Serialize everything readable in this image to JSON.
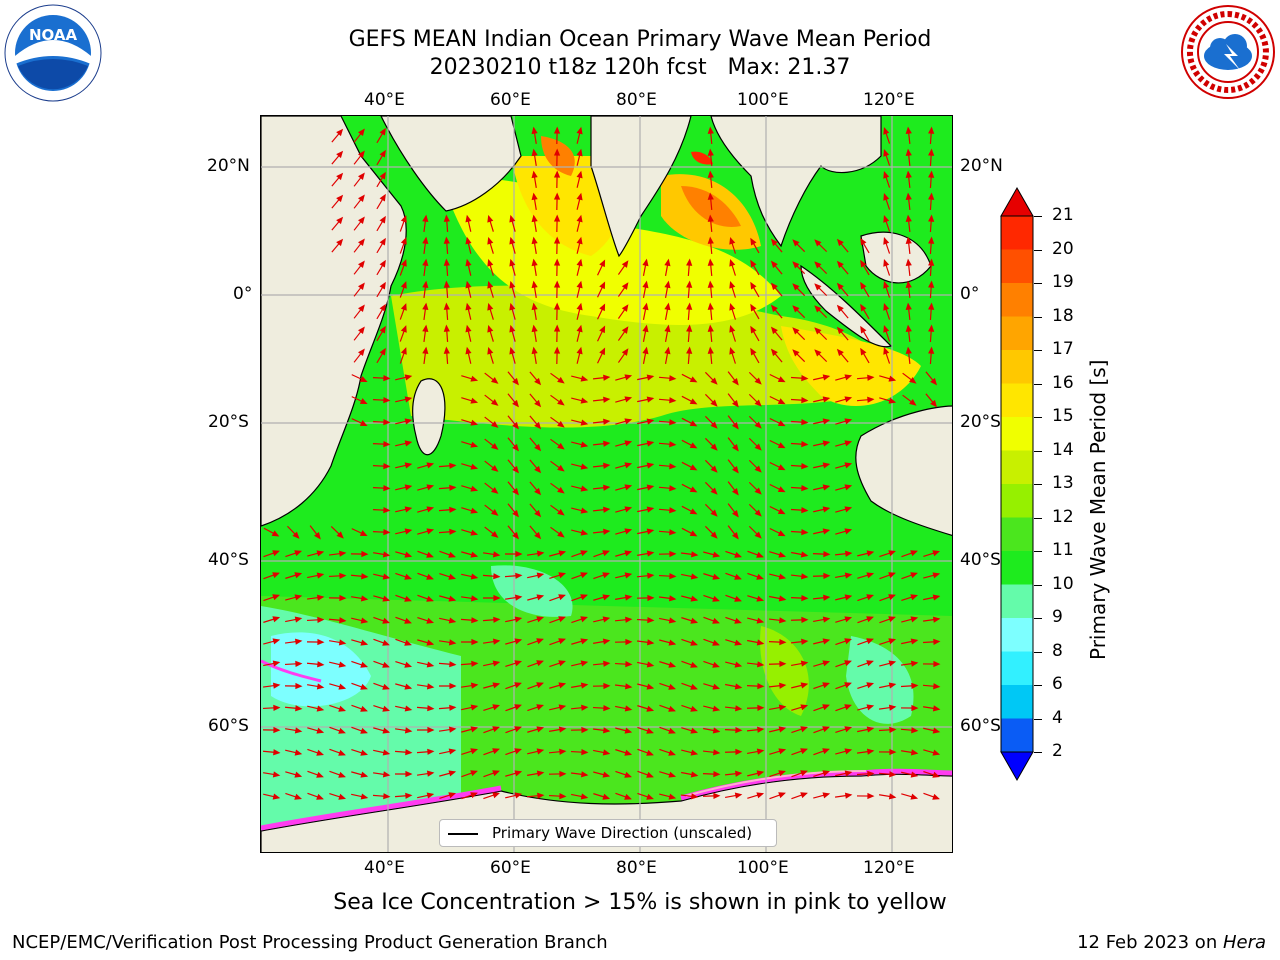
{
  "title": {
    "line1": "GEFS MEAN Indian Ocean Primary Wave Mean Period",
    "line2": "20230210 t18z 120h fcst   Max: 21.37"
  },
  "axes": {
    "lon_labels": [
      "40°E",
      "60°E",
      "80°E",
      "100°E",
      "120°E"
    ],
    "lat_labels": [
      "20°N",
      "0°",
      "20°S",
      "40°S",
      "60°S"
    ]
  },
  "legend": {
    "label": "Primary Wave Direction (unscaled)"
  },
  "colorbar": {
    "label": "Primary Wave Mean Period [s]",
    "ticks": [
      "2",
      "4",
      "6",
      "8",
      "9",
      "10",
      "11",
      "12",
      "13",
      "14",
      "15",
      "16",
      "17",
      "18",
      "19",
      "20",
      "21"
    ],
    "colors": [
      "#0000ff",
      "#0a5cf5",
      "#00c8f5",
      "#32f0ff",
      "#7dffff",
      "#64fbaa",
      "#1eeb1e",
      "#4be61e",
      "#96f000",
      "#c8f000",
      "#f0ff00",
      "#ffe600",
      "#ffc800",
      "#ffa500",
      "#ff8000",
      "#ff5000",
      "#ff2800",
      "#e60000"
    ]
  },
  "caption": "Sea Ice Concentration > 15% is shown in pink to yellow",
  "footer": {
    "left": "NCEP/EMC/Verification Post Processing Product Generation Branch",
    "right_prefix": "12 Feb 2023 on ",
    "right_host": "Hera"
  },
  "logos": {
    "noaa": "NOAA",
    "nws": "NATIONAL WEATHER SERVICE"
  },
  "map": {
    "land_color": "#efedde",
    "arrow_color": "#e00000",
    "ice_colors": [
      "#ff3cf0",
      "#ffb0d0",
      "#ffff80"
    ]
  }
}
